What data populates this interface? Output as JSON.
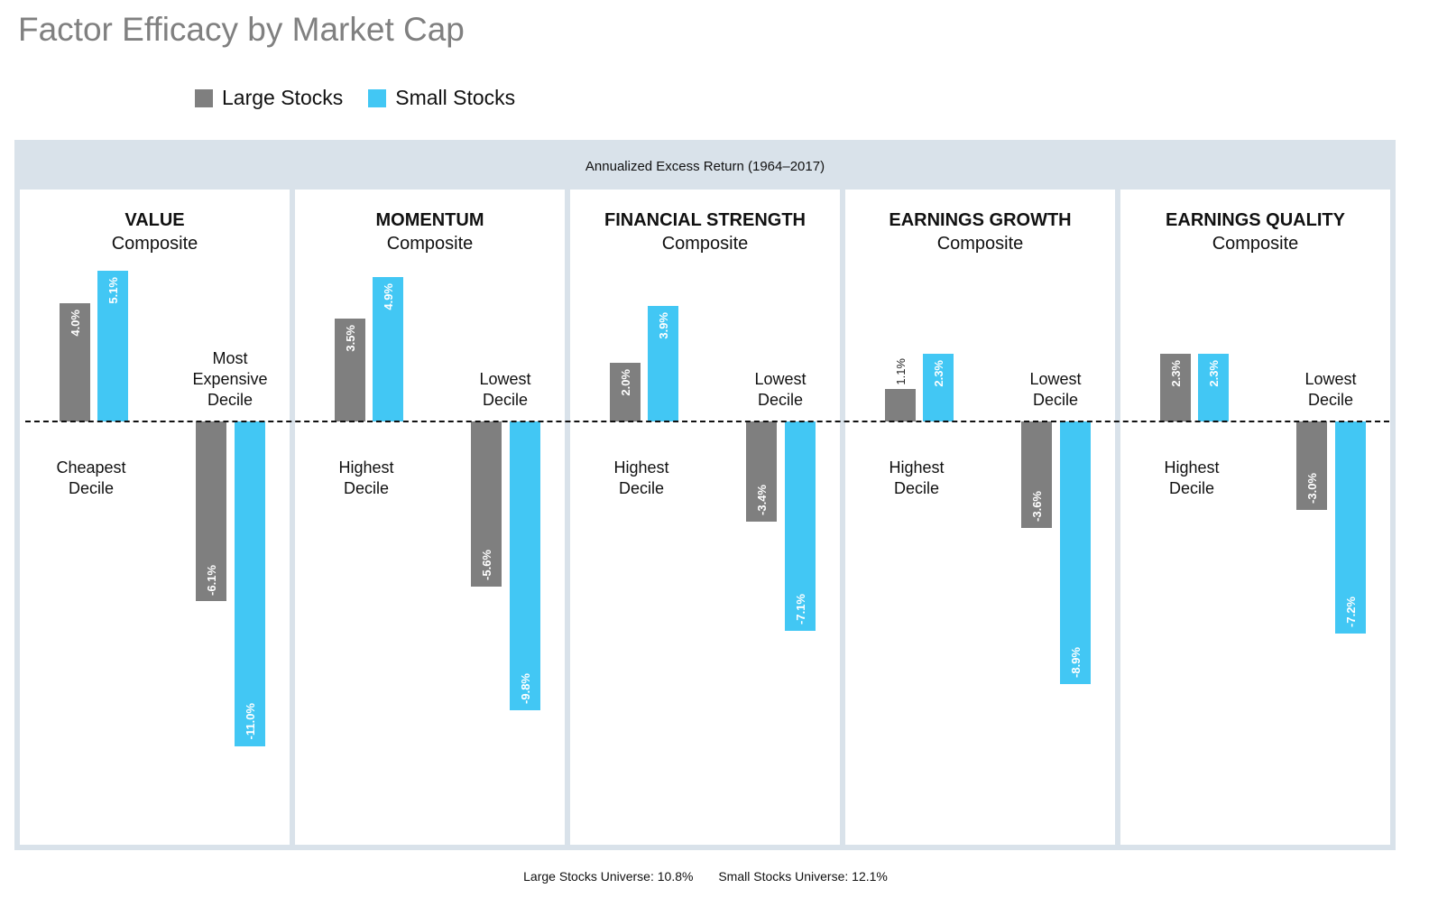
{
  "title": "Factor Efficacy by Market Cap",
  "legend": [
    {
      "label": "Large Stocks",
      "color": "#7f7f7f"
    },
    {
      "label": "Small Stocks",
      "color": "#42c7f4"
    }
  ],
  "subtitle": "Annualized Excess Return (1964–2017)",
  "footer": {
    "large": "Large Stocks Universe: 10.8%",
    "small": "Small Stocks Universe: 12.1%"
  },
  "chart_data": {
    "type": "bar",
    "title": "Factor Efficacy by Market Cap",
    "ylabel": "Annualized Excess Return (1964–2017)",
    "series_names": [
      "Large Stocks",
      "Small Stocks"
    ],
    "panels": [
      {
        "name": "VALUE",
        "sub": "Composite",
        "top_label": "Cheapest\nDecile",
        "bottom_label": "Most\nExpensive\nDecile",
        "top": {
          "large": 4.0,
          "small": 5.1
        },
        "bottom": {
          "large": -6.1,
          "small": -11.0
        }
      },
      {
        "name": "MOMENTUM",
        "sub": "Composite",
        "top_label": "Highest\nDecile",
        "bottom_label": "Lowest\nDecile",
        "top": {
          "large": 3.5,
          "small": 4.9
        },
        "bottom": {
          "large": -5.6,
          "small": -9.8
        }
      },
      {
        "name": "FINANCIAL STRENGTH",
        "sub": "Composite",
        "top_label": "Highest\nDecile",
        "bottom_label": "Lowest\nDecile",
        "top": {
          "large": 2.0,
          "small": 3.9
        },
        "bottom": {
          "large": -3.4,
          "small": -7.1
        }
      },
      {
        "name": "EARNINGS GROWTH",
        "sub": "Composite",
        "top_label": "Highest\nDecile",
        "bottom_label": "Lowest\nDecile",
        "top": {
          "large": 1.1,
          "small": 2.3
        },
        "bottom": {
          "large": -3.6,
          "small": -8.9
        }
      },
      {
        "name": "EARNINGS QUALITY",
        "sub": "Composite",
        "top_label": "Highest\nDecile",
        "bottom_label": "Lowest\nDecile",
        "top": {
          "large": 2.3,
          "small": 2.3
        },
        "bottom": {
          "large": -3.0,
          "small": -7.2
        }
      }
    ]
  }
}
